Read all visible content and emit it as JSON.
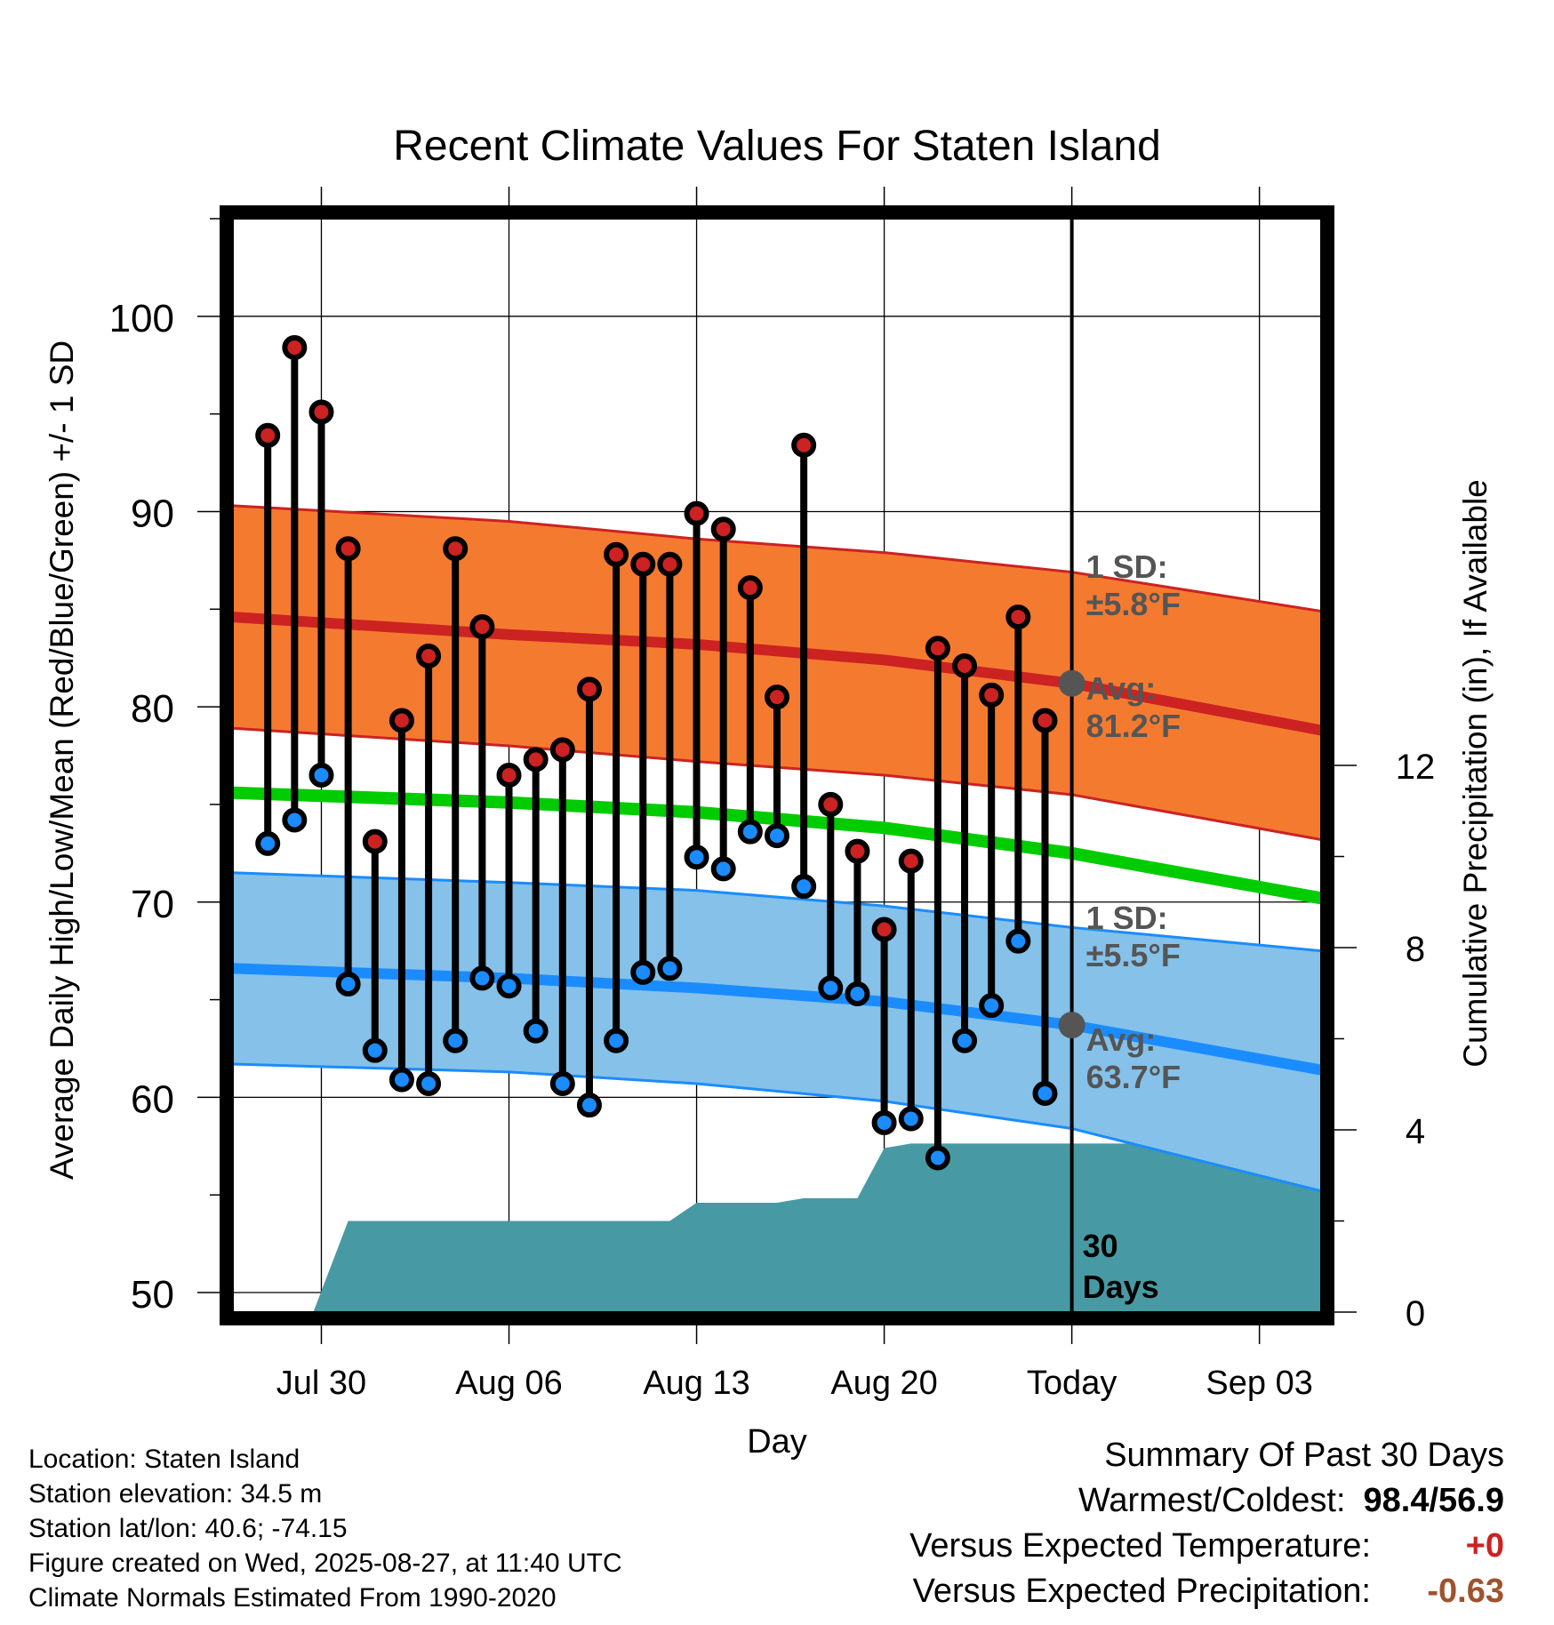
{
  "chart_data": {
    "type": "line",
    "title": "Recent Climate Values For Staten Island",
    "xlabel": "Day",
    "ylabel": "Average Daily High/Low/Mean (Red/Blue/Green) +/- 1 SD",
    "y2label": "Cumulative Precipitation (in), If Available",
    "x_tick_labels": [
      "Jul 30",
      "Aug 06",
      "Aug 13",
      "Aug 20",
      "Today",
      "Sep 03"
    ],
    "x_tick_days": [
      -28,
      -21,
      -14,
      -7,
      0,
      7
    ],
    "xlim_days": [
      -31.3,
      9.3
    ],
    "ylim": [
      49,
      105
    ],
    "y_ticks": [
      50,
      60,
      70,
      80,
      90,
      100
    ],
    "y2_ticks": [
      0,
      4,
      8,
      12
    ],
    "y2lim": [
      0,
      24
    ],
    "grid": true,
    "colors": {
      "high_band": "#f47a30",
      "high_line": "#cc2222",
      "low_band": "#85c1e9",
      "low_line": "#1a8cff",
      "mean_line": "#00cc00",
      "precip": "#479aa3",
      "high_marker": "#cc2222",
      "low_marker": "#1a8cff",
      "avg_marker": "#555555",
      "annotation_text": "#555555"
    },
    "normals": {
      "x_days": [
        -31.3,
        -21,
        -14,
        -7,
        0,
        9.3
      ],
      "high_avg": [
        84.6,
        83.7,
        83.2,
        82.4,
        81.2,
        78.8
      ],
      "high_upper": [
        90.3,
        89.5,
        88.6,
        87.9,
        86.9,
        84.9
      ],
      "high_lower": [
        78.9,
        78.0,
        77.2,
        76.5,
        75.5,
        73.2
      ],
      "mean": [
        75.6,
        75.1,
        74.6,
        73.8,
        72.5,
        70.2
      ],
      "low_avg": [
        66.6,
        66.1,
        65.6,
        64.9,
        63.7,
        61.4
      ],
      "low_upper": [
        71.5,
        71.0,
        70.6,
        69.8,
        68.7,
        67.5
      ],
      "low_lower": [
        61.7,
        61.3,
        60.7,
        59.8,
        58.4,
        55.2
      ]
    },
    "series": [
      {
        "name": "High",
        "x_days": [
          -30,
          -29,
          -28,
          -27,
          -26,
          -25,
          -24,
          -23,
          -22,
          -21,
          -20,
          -19,
          -18,
          -17,
          -16,
          -15,
          -14,
          -13,
          -12,
          -11,
          -10,
          -9,
          -8,
          -7,
          -6,
          -5,
          -4,
          -3,
          -2,
          -1
        ],
        "values": [
          93.9,
          98.4,
          95.1,
          88.1,
          73.1,
          79.3,
          82.6,
          88.1,
          84.1,
          76.5,
          77.3,
          77.8,
          80.9,
          87.8,
          87.3,
          87.3,
          89.9,
          89.1,
          86.1,
          80.5,
          93.4,
          75.0,
          72.6,
          68.6,
          72.1,
          83.0,
          82.1,
          80.6,
          84.6,
          79.3
        ]
      },
      {
        "name": "Low",
        "x_days": [
          -30,
          -29,
          -28,
          -27,
          -26,
          -25,
          -24,
          -23,
          -22,
          -21,
          -20,
          -19,
          -18,
          -17,
          -16,
          -15,
          -14,
          -13,
          -12,
          -11,
          -10,
          -9,
          -8,
          -7,
          -6,
          -5,
          -4,
          -3,
          -2,
          -1
        ],
        "values": [
          73.0,
          74.2,
          76.5,
          65.8,
          62.4,
          60.9,
          60.7,
          62.9,
          66.1,
          65.7,
          63.4,
          60.7,
          59.6,
          62.9,
          66.4,
          66.6,
          72.3,
          71.7,
          73.6,
          73.4,
          70.8,
          65.6,
          65.3,
          58.7,
          58.9,
          56.9,
          62.9,
          64.7,
          68.0,
          60.2
        ]
      },
      {
        "name": "Precipitation",
        "x_days": [
          -28.3,
          -27,
          -15,
          -14,
          -11,
          -10,
          -8,
          -7,
          -6,
          -5,
          9.3
        ],
        "values": [
          0,
          2.0,
          2.0,
          2.4,
          2.4,
          2.5,
          2.5,
          3.6,
          3.7,
          3.7,
          3.7
        ]
      }
    ],
    "annotations": {
      "high_sd_label": "1 SD:",
      "high_sd_value": "±5.8°F",
      "high_avg_label": "Avg:",
      "high_avg_value": "81.2°F",
      "high_avg_point": 81.2,
      "low_sd_label": "1 SD:",
      "low_sd_value": "±5.5°F",
      "low_avg_label": "Avg:",
      "low_avg_value": "63.7°F",
      "low_avg_point": 63.7,
      "window_line1": "30",
      "window_line2": "Days"
    }
  },
  "info": {
    "location": "Location: Staten Island",
    "elevation": "Station elevation: 34.5 m",
    "latlon": "Station lat/lon: 40.6; -74.15",
    "created": "Figure created on Wed, 2025-08-27, at 11:40 UTC",
    "normals": "Climate Normals Estimated From 1990-2020"
  },
  "summary": {
    "title": "Summary Of Past 30 Days",
    "warm_cold_label": "Warmest/Coldest:",
    "warm_cold_value": "98.4/56.9",
    "temp_label": "Versus Expected Temperature:",
    "temp_value": "+0",
    "temp_color": "#cc2222",
    "precip_label": "Versus Expected Precipitation:",
    "precip_value": "-0.63",
    "precip_color": "#a0522d"
  }
}
